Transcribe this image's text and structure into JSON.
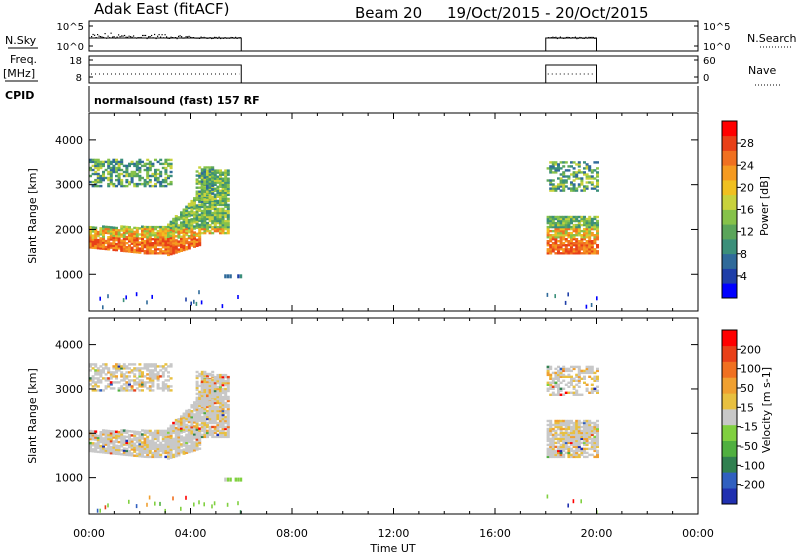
{
  "header": {
    "station": "Adak East (fitACF)",
    "beam": "Beam 20",
    "dates": "19/Oct/2015 - 20/Oct/2015"
  },
  "labels": {
    "nsky": "N.Sky",
    "nsearch": "N.Search",
    "freq_top": "Freq.",
    "freq_unit": "[MHz]",
    "nave": "Nave",
    "cpid": "CPID",
    "cpid_text": "normalsound (fast) 157 RF"
  },
  "chart_data": [
    {
      "type": "line",
      "name": "noise-panel",
      "left_ticks": [
        "10^5",
        "10^0"
      ],
      "right_ticks": [
        "10^5",
        "10^0"
      ],
      "segments_hours": [
        [
          0,
          6
        ],
        [
          18,
          20
        ]
      ]
    },
    {
      "type": "line",
      "name": "frequency-panel",
      "left_ticks": [
        "18",
        "8"
      ],
      "right_ticks": [
        "60",
        "0"
      ],
      "segments_hours": [
        [
          0,
          6
        ],
        [
          18,
          20
        ]
      ]
    },
    {
      "type": "heatmap",
      "name": "power-panel",
      "ylabel": "Slant Range [km]",
      "yticks": [
        1000,
        2000,
        3000,
        4000
      ],
      "ylim": [
        180,
        4600
      ],
      "xlim_hours": [
        0,
        24
      ],
      "colorbar": {
        "label": "Power [dB]",
        "ticks": [
          "28",
          "24",
          "20",
          "16",
          "12",
          "8",
          "4"
        ],
        "colors": [
          "#0000ff",
          "#1f3fa8",
          "#2f6a9a",
          "#3b8f7a",
          "#5aa55a",
          "#86c24a",
          "#c8d23c",
          "#f0c020",
          "#f59a20",
          "#f07020",
          "#e84018",
          "#ff0000"
        ]
      }
    },
    {
      "type": "heatmap",
      "name": "velocity-panel",
      "ylabel": "Slant Range [km]",
      "yticks": [
        1000,
        2000,
        3000,
        4000
      ],
      "ylim": [
        180,
        4600
      ],
      "xlim_hours": [
        0,
        24
      ],
      "xlabel": "Time UT",
      "xticks": [
        "00:00",
        "04:00",
        "08:00",
        "12:00",
        "16:00",
        "20:00",
        "00:00"
      ],
      "colorbar": {
        "label": "Velocity [m s-1]",
        "ticks": [
          "200",
          "100",
          "50",
          "15",
          "-15",
          "-50",
          "-100",
          "-200"
        ],
        "colors": [
          "#2030b0",
          "#3060c0",
          "#308050",
          "#50b040",
          "#80d040",
          "#c8c8c8",
          "#e8c040",
          "#f0a030",
          "#f07020",
          "#e84018",
          "#ff0000"
        ]
      }
    }
  ]
}
